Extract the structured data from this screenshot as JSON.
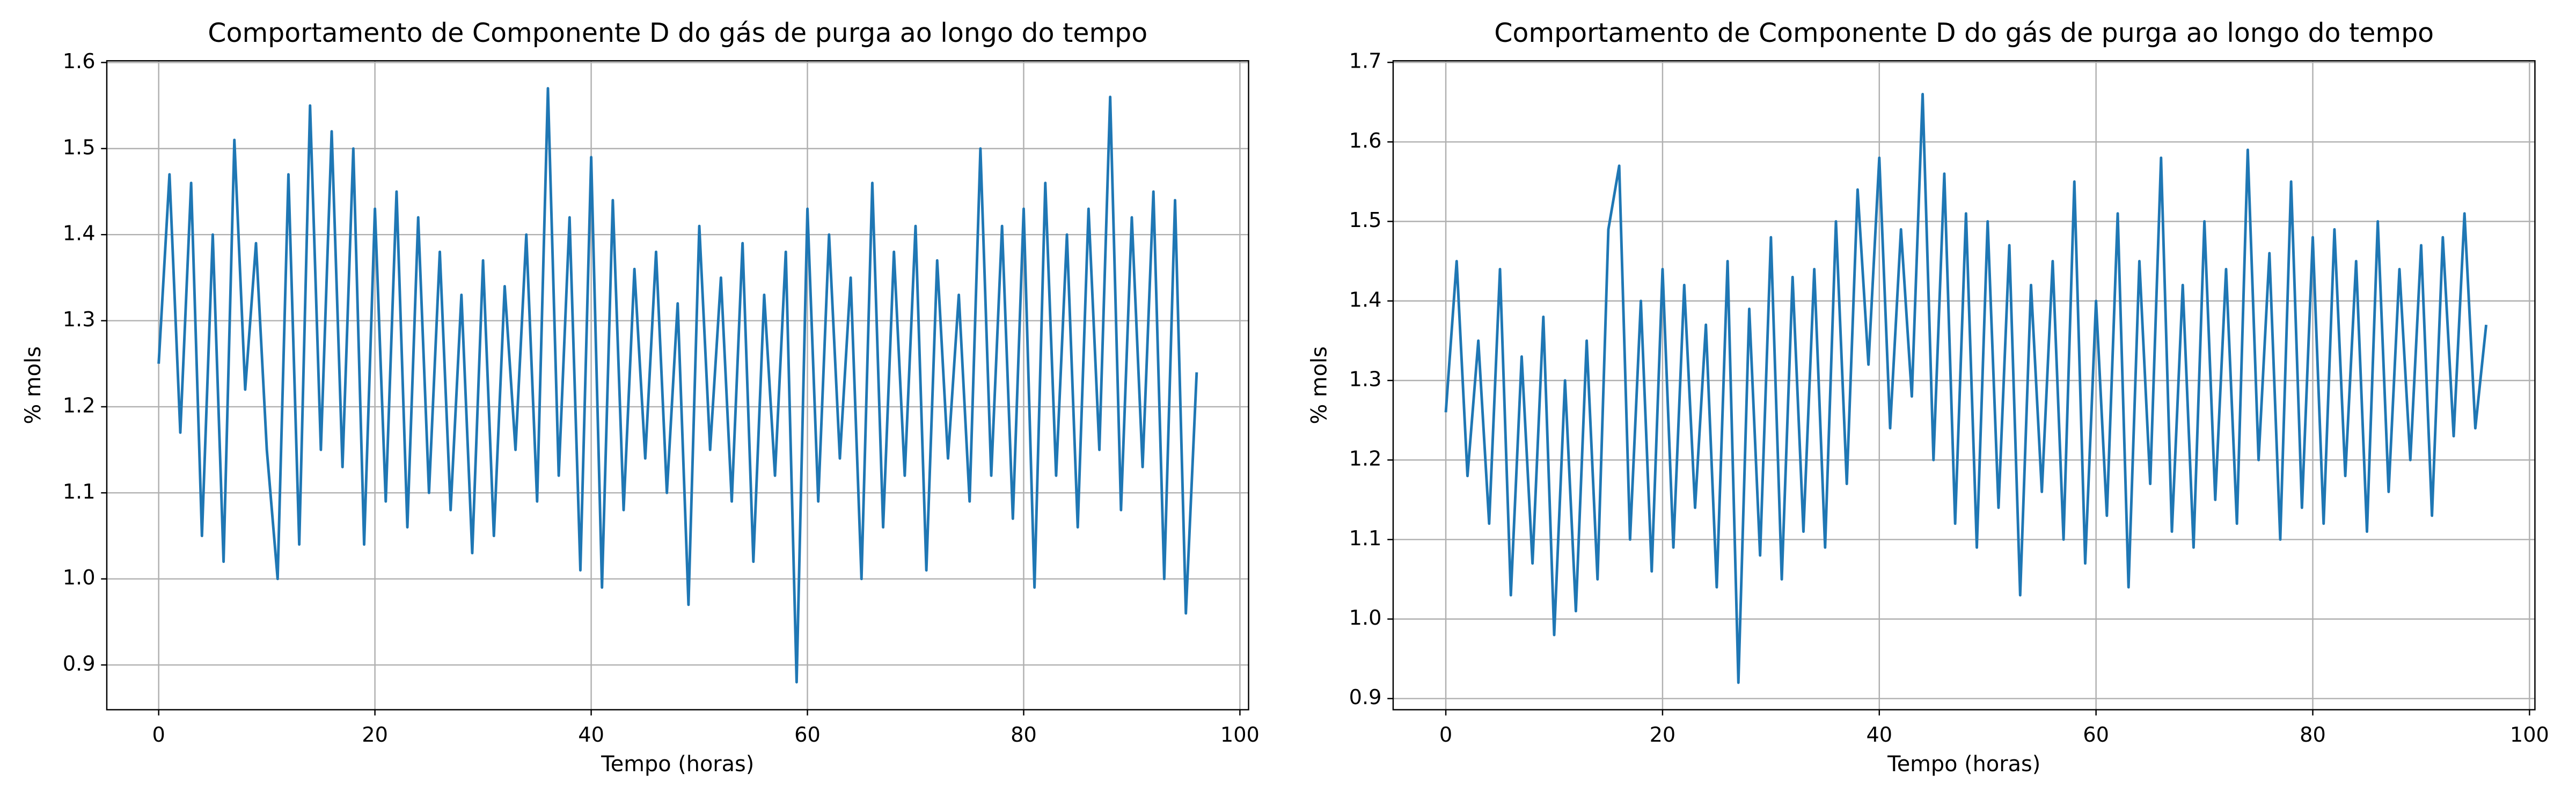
{
  "chart_data": [
    {
      "type": "line",
      "title": "Comportamento de Componente D do gás de purga ao longo do tempo",
      "x_label": "Tempo (horas)",
      "y_label": "% mols",
      "x": [
        0,
        1,
        2,
        3,
        4,
        5,
        6,
        7,
        8,
        9,
        10,
        11,
        12,
        13,
        14,
        15,
        16,
        17,
        18,
        19,
        20,
        21,
        22,
        23,
        24,
        25,
        26,
        27,
        28,
        29,
        30,
        31,
        32,
        33,
        34,
        35,
        36,
        37,
        38,
        39,
        40,
        41,
        42,
        43,
        44,
        45,
        46,
        47,
        48,
        49,
        50,
        51,
        52,
        53,
        54,
        55,
        56,
        57,
        58,
        59,
        60,
        61,
        62,
        63,
        64,
        65,
        66,
        67,
        68,
        69,
        70,
        71,
        72,
        73,
        74,
        75,
        76,
        77,
        78,
        79,
        80,
        81,
        82,
        83,
        84,
        85,
        86,
        87,
        88,
        89,
        90,
        91,
        92,
        93,
        94,
        95,
        96
      ],
      "values": [
        1.25,
        1.47,
        1.17,
        1.46,
        1.05,
        1.4,
        1.02,
        1.51,
        1.22,
        1.39,
        1.15,
        1.0,
        1.47,
        1.04,
        1.55,
        1.15,
        1.52,
        1.13,
        1.5,
        1.04,
        1.43,
        1.09,
        1.45,
        1.06,
        1.42,
        1.1,
        1.38,
        1.08,
        1.33,
        1.03,
        1.37,
        1.05,
        1.34,
        1.15,
        1.4,
        1.09,
        1.57,
        1.12,
        1.42,
        1.01,
        1.49,
        0.99,
        1.44,
        1.08,
        1.36,
        1.14,
        1.38,
        1.1,
        1.32,
        0.97,
        1.41,
        1.15,
        1.35,
        1.09,
        1.39,
        1.02,
        1.33,
        1.12,
        1.38,
        0.88,
        1.43,
        1.09,
        1.4,
        1.14,
        1.35,
        1.0,
        1.46,
        1.06,
        1.38,
        1.12,
        1.41,
        1.01,
        1.37,
        1.14,
        1.33,
        1.09,
        1.5,
        1.12,
        1.41,
        1.07,
        1.43,
        0.99,
        1.46,
        1.12,
        1.4,
        1.06,
        1.43,
        1.15,
        1.56,
        1.08,
        1.42,
        1.13,
        1.45,
        1.0,
        1.44,
        0.96,
        1.24
      ],
      "color": "#1f77b4",
      "xlim": [
        -4.8,
        100.8
      ],
      "ylim": [
        0.848,
        1.602
      ],
      "xticks": [
        0,
        20,
        40,
        60,
        80,
        100
      ],
      "yticks": [
        0.9,
        {
          "value": 1,
          "label": "1.0"
        },
        1.1,
        1.2,
        1.3,
        1.4,
        1.5,
        1.6
      ],
      "grid": true
    },
    {
      "type": "line",
      "title": "Comportamento de Componente D do gás de purga ao longo do tempo",
      "x_label": "Tempo (horas)",
      "y_label": "% mols",
      "x": [
        0,
        1,
        2,
        3,
        4,
        5,
        6,
        7,
        8,
        9,
        10,
        11,
        12,
        13,
        14,
        15,
        16,
        17,
        18,
        19,
        20,
        21,
        22,
        23,
        24,
        25,
        26,
        27,
        28,
        29,
        30,
        31,
        32,
        33,
        34,
        35,
        36,
        37,
        38,
        39,
        40,
        41,
        42,
        43,
        44,
        45,
        46,
        47,
        48,
        49,
        50,
        51,
        52,
        53,
        54,
        55,
        56,
        57,
        58,
        59,
        60,
        61,
        62,
        63,
        64,
        65,
        66,
        67,
        68,
        69,
        70,
        71,
        72,
        73,
        74,
        75,
        76,
        77,
        78,
        79,
        80,
        81,
        82,
        83,
        84,
        85,
        86,
        87,
        88,
        89,
        90,
        91,
        92,
        93,
        94,
        95,
        96
      ],
      "values": [
        1.26,
        1.45,
        1.18,
        1.35,
        1.12,
        1.44,
        1.03,
        1.33,
        1.07,
        1.38,
        0.98,
        1.3,
        1.01,
        1.35,
        1.05,
        1.49,
        1.57,
        1.1,
        1.4,
        1.06,
        1.44,
        1.09,
        1.42,
        1.14,
        1.37,
        1.04,
        1.45,
        0.92,
        1.39,
        1.08,
        1.48,
        1.05,
        1.43,
        1.11,
        1.44,
        1.09,
        1.5,
        1.17,
        1.54,
        1.32,
        1.58,
        1.24,
        1.49,
        1.28,
        1.66,
        1.2,
        1.56,
        1.12,
        1.51,
        1.09,
        1.5,
        1.14,
        1.47,
        1.03,
        1.42,
        1.16,
        1.45,
        1.1,
        1.55,
        1.07,
        1.4,
        1.13,
        1.51,
        1.04,
        1.45,
        1.17,
        1.58,
        1.11,
        1.42,
        1.09,
        1.5,
        1.15,
        1.44,
        1.12,
        1.59,
        1.2,
        1.46,
        1.1,
        1.55,
        1.14,
        1.48,
        1.12,
        1.49,
        1.18,
        1.45,
        1.11,
        1.5,
        1.16,
        1.44,
        1.2,
        1.47,
        1.13,
        1.48,
        1.23,
        1.51,
        1.24,
        1.37
      ],
      "color": "#1f77b4",
      "xlim": [
        -4.86,
        100.5
      ],
      "ylim": [
        0.886,
        1.702
      ],
      "xticks": [
        0,
        20,
        40,
        60,
        80,
        100
      ],
      "yticks": [
        0.9,
        {
          "value": 1,
          "label": "1.0"
        },
        1.1,
        1.2,
        1.3,
        1.4,
        1.5,
        1.6,
        1.7
      ],
      "grid": true
    }
  ]
}
